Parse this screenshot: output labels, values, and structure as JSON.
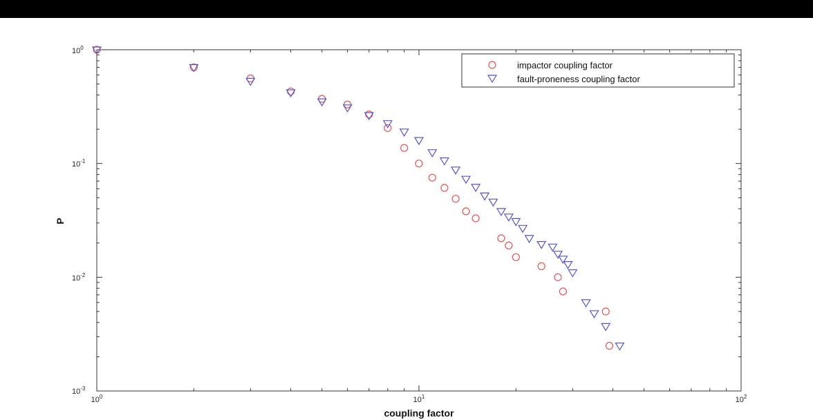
{
  "chart_data": {
    "type": "scatter",
    "title": "",
    "xlabel": "coupling factor",
    "ylabel": "P",
    "xscale": "log",
    "yscale": "log",
    "xlim": [
      1,
      100
    ],
    "ylim": [
      0.001,
      1
    ],
    "x_tick_labels": [
      {
        "base": "10",
        "exp": "0"
      },
      {
        "base": "10",
        "exp": "1"
      },
      {
        "base": "10",
        "exp": "2"
      }
    ],
    "y_tick_labels": [
      {
        "base": "10",
        "exp": "0"
      },
      {
        "base": "10",
        "exp": "-1"
      },
      {
        "base": "10",
        "exp": "-2"
      },
      {
        "base": "10",
        "exp": "-3"
      }
    ],
    "grid": false,
    "legend_position": "top-right",
    "series": [
      {
        "name": "impactor coupling factor",
        "marker": "circle",
        "color": "#e05555",
        "x": [
          1,
          2,
          3,
          4,
          5,
          6,
          7,
          8,
          9,
          10,
          11,
          12,
          13,
          14,
          15,
          18,
          19,
          20,
          24,
          27,
          28,
          38,
          39
        ],
        "y": [
          1.0,
          0.7,
          0.56,
          0.43,
          0.37,
          0.33,
          0.27,
          0.205,
          0.137,
          0.1,
          0.075,
          0.061,
          0.049,
          0.038,
          0.033,
          0.022,
          0.019,
          0.015,
          0.0125,
          0.01,
          0.0075,
          0.005,
          0.0025
        ]
      },
      {
        "name": "fault-proneness coupling factor",
        "marker": "triangle-down",
        "color": "#5555cc",
        "x": [
          1,
          2,
          3,
          4,
          5,
          6,
          7,
          8,
          9,
          10,
          11,
          12,
          13,
          14,
          15,
          16,
          17,
          18,
          19,
          20,
          21,
          22,
          24,
          26,
          27,
          28,
          29,
          30,
          33,
          35,
          38,
          42
        ],
        "y": [
          1.0,
          0.7,
          0.53,
          0.42,
          0.35,
          0.31,
          0.265,
          0.225,
          0.19,
          0.16,
          0.125,
          0.106,
          0.088,
          0.073,
          0.062,
          0.052,
          0.046,
          0.038,
          0.034,
          0.031,
          0.027,
          0.022,
          0.0195,
          0.0185,
          0.016,
          0.0145,
          0.013,
          0.011,
          0.006,
          0.0048,
          0.0037,
          0.0025
        ]
      }
    ]
  }
}
